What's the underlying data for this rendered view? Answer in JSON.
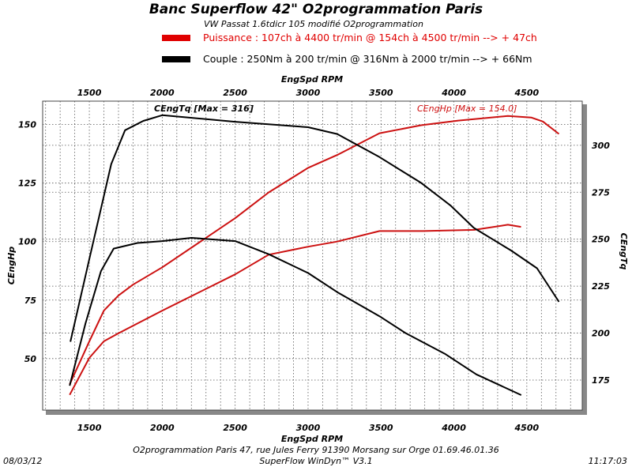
{
  "header": {
    "title": "Banc Superflow 42\" O2programmation Paris",
    "subtitle": "VW Passat 1.6tdicr 105 modifié O2programmation",
    "legend": [
      {
        "label": "Puissance : 107ch à 4400 tr/min @ 154ch à 4500 tr/min --> + 47ch",
        "color": "#e00000"
      },
      {
        "label": "Couple : 250Nm à 200 tr/min @ 316Nm à 2000 tr/min --> + 66Nm",
        "color": "#000000"
      }
    ]
  },
  "footer": {
    "date": "08/03/12",
    "time": "11:17:03",
    "address": "O2programmation Paris 47, rue Jules Ferry 91390 Morsang sur Orge 01.69.46.01.36",
    "software": "SuperFlow WinDyn™ V3.1"
  },
  "chart_data": {
    "type": "line",
    "xlabel": "EngSpd RPM",
    "ylabel_left": "CEngHp",
    "ylabel_right": "CEngTq",
    "xlim": [
      1180,
      4880
    ],
    "ylim_left": [
      28,
      160
    ],
    "ylim_right": [
      159,
      323.5
    ],
    "xticks": [
      1500,
      2000,
      2500,
      3000,
      3500,
      4000,
      4500
    ],
    "yticks_left": [
      50,
      75,
      100,
      125,
      150
    ],
    "yticks_right": [
      175,
      200,
      225,
      250,
      275,
      300
    ],
    "grid": true,
    "annotations": [
      {
        "text": "CEngTq [Max = 316]",
        "color": "#000000"
      },
      {
        "text": "CEngHp [Max = 154.0]",
        "color": "#d01010"
      }
    ],
    "series": [
      {
        "axis": "left",
        "color": "#cc1111",
        "x": [
          1365,
          1500,
          1600,
          1700,
          1800,
          2000,
          2500,
          2730,
          3000,
          3200,
          3490,
          3775,
          4030,
          4370,
          4530,
          4610,
          4720
        ],
        "y": [
          39,
          57.4,
          70.5,
          77,
          81.6,
          89,
          110,
          121,
          131.5,
          137,
          146.3,
          149.7,
          151.7,
          153.7,
          153,
          151.3,
          146
        ]
      },
      {
        "axis": "left",
        "color": "#cc1111",
        "x": [
          1365,
          1500,
          1600,
          1700,
          2000,
          2500,
          2730,
          3000,
          3200,
          3490,
          3790,
          4140,
          4370,
          4460
        ],
        "y": [
          34.5,
          50.3,
          57.4,
          60.8,
          70.5,
          86,
          94.4,
          97.8,
          100,
          104.5,
          104.5,
          105,
          107.2,
          106.3
        ]
      },
      {
        "axis": "right",
        "color": "#000000",
        "x": [
          1370,
          1500,
          1600,
          1650,
          1745,
          1870,
          2000,
          2500,
          3000,
          3200,
          3490,
          3775,
          3976,
          4137,
          4392,
          4570,
          4720
        ],
        "y": [
          195.4,
          239.5,
          273,
          290,
          308,
          313,
          316,
          312.5,
          309.6,
          306,
          293.7,
          280,
          268,
          256,
          244,
          234.5,
          216.7
        ]
      },
      {
        "axis": "right",
        "color": "#000000",
        "x": [
          1365,
          1473,
          1580,
          1667,
          1830,
          2000,
          2200,
          2500,
          2730,
          3000,
          3200,
          3490,
          3668,
          3938,
          4154,
          4462
        ],
        "y": [
          172,
          205,
          233,
          245,
          248,
          249,
          250.7,
          249,
          242,
          232,
          221.8,
          209,
          200,
          189,
          178,
          167
        ]
      }
    ]
  }
}
